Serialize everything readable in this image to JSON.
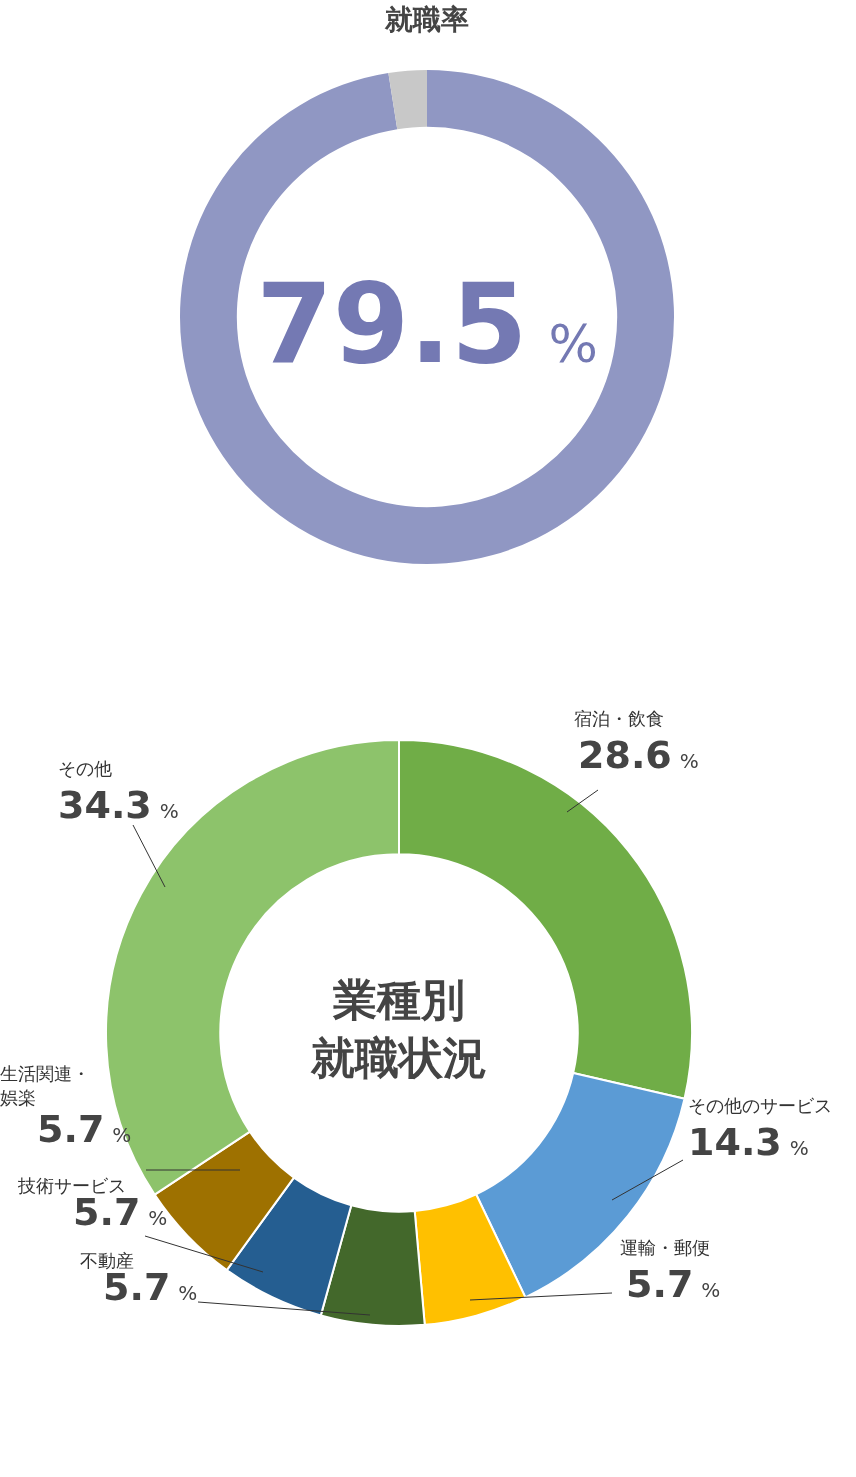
{
  "chart_data": [
    {
      "type": "donut",
      "title": "就職率",
      "categories": [
        null,
        null
      ],
      "values": [
        97.5,
        2.5
      ],
      "colors": [
        "#9097c3",
        "#c8c8c8"
      ],
      "annotations": [
        "79.5 %"
      ]
    },
    {
      "type": "donut",
      "title": "業種別就職状況",
      "categories": [
        "宿泊・飲食",
        "その他のサービス",
        "運輸・郵便",
        "不動産",
        "技術サービス",
        "生活関連・娯楽",
        "その他"
      ],
      "values": [
        28.6,
        14.3,
        5.7,
        5.7,
        5.7,
        5.7,
        34.3
      ],
      "colors": [
        "#70ad47",
        "#5b9bd5",
        "#ffc000",
        "#43682b",
        "#255e91",
        "#9e7100",
        "#8dc36b"
      ],
      "value_labels": [
        "28.6 %",
        "14.3 %",
        "5.7 %",
        "5.7 %",
        "5.7 %",
        "5.7 %",
        "34.3 %"
      ]
    }
  ]
}
